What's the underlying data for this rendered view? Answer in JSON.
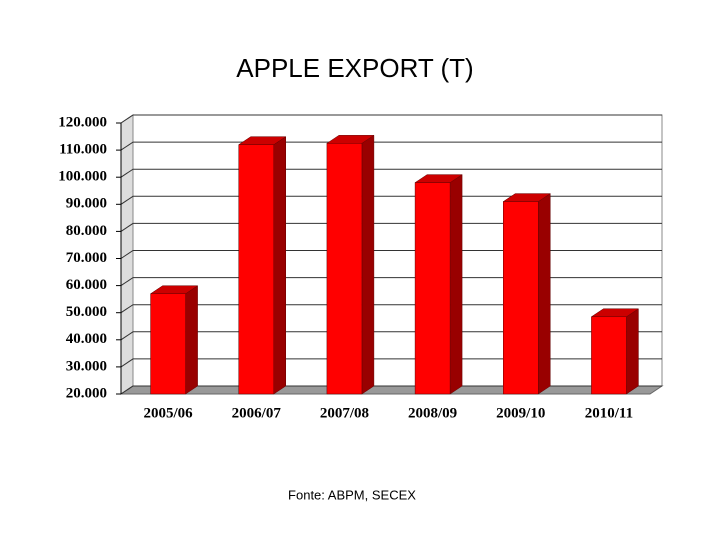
{
  "chart_data": {
    "type": "bar3d",
    "title": "APPLE EXPORT (T)",
    "categories": [
      "2005/06",
      "2006/07",
      "2007/08",
      "2008/09",
      "2009/10",
      "2010/11"
    ],
    "values": [
      57000,
      112000,
      112500,
      98000,
      91000,
      48500
    ],
    "color": "#ff0000",
    "ylim": [
      20000,
      120000
    ],
    "yticks": [
      {
        "value": 20000,
        "label": "20.000"
      },
      {
        "value": 30000,
        "label": "30.000"
      },
      {
        "value": 40000,
        "label": "40.000"
      },
      {
        "value": 50000,
        "label": "50.000"
      },
      {
        "value": 60000,
        "label": "60.000"
      },
      {
        "value": 70000,
        "label": "70.000"
      },
      {
        "value": 80000,
        "label": "80.000"
      },
      {
        "value": 90000,
        "label": "90.000"
      },
      {
        "value": 100000,
        "label": "100.000"
      },
      {
        "value": 110000,
        "label": "110.000"
      },
      {
        "value": 120000,
        "label": "120.000"
      }
    ],
    "grid": true,
    "source": "Fonte: ABPM, SECEX"
  }
}
